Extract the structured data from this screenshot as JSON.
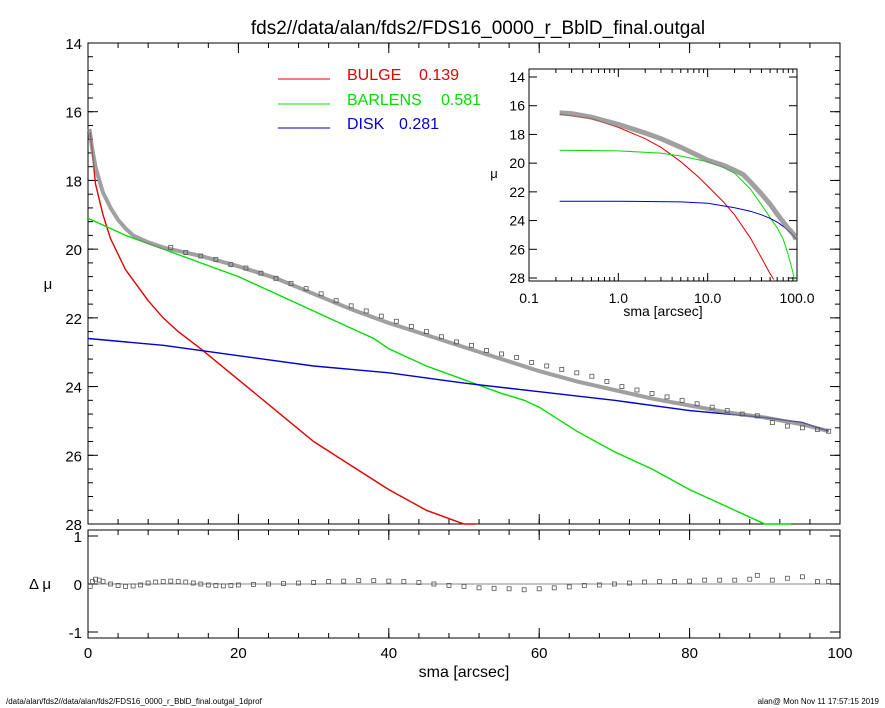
{
  "title": "fds2//data/alan/fds2/FDS16_0000_r_BblD_final.outgal",
  "footer": {
    "left": "/data/alan/fds2//data/alan/fds2/FDS16_0000_r_BblD_final.outgal_1dprof",
    "right": "alan@  Mon Nov 11 17:57:15 2019"
  },
  "colors": {
    "bulge": "#e00000",
    "barlens": "#00dd00",
    "disk": "#0000cc",
    "model": "#808080",
    "data": "#606060"
  },
  "chart_data": [
    {
      "id": "main",
      "type": "line",
      "xlabel": "",
      "ylabel": "μ",
      "xlim": [
        0,
        100
      ],
      "ylim": [
        28,
        14
      ],
      "y_inverted": true,
      "yticks": [
        14,
        16,
        18,
        20,
        22,
        24,
        26,
        28
      ],
      "ytick_labels": [
        "14",
        "16",
        "18",
        "20",
        "22",
        "24",
        "26",
        "28"
      ],
      "legend": [
        {
          "name": "BULGE",
          "value": "0.139",
          "color": "#e00000"
        },
        {
          "name": "BARLENS",
          "value": "0.581",
          "color": "#00dd00"
        },
        {
          "name": "DISK",
          "value": "0.281",
          "color": "#0000cc"
        }
      ],
      "series": [
        {
          "name": "BULGE",
          "color": "#e00000",
          "x": [
            0.3,
            1,
            2,
            3,
            5,
            8,
            10,
            12,
            15,
            20,
            25,
            30,
            35,
            40,
            45,
            50,
            51.5
          ],
          "y": [
            16.6,
            18.1,
            19.0,
            19.7,
            20.6,
            21.5,
            22.0,
            22.4,
            22.9,
            23.8,
            24.7,
            25.6,
            26.3,
            27.0,
            27.6,
            28.0,
            28.1
          ]
        },
        {
          "name": "BARLENS",
          "color": "#00dd00",
          "x": [
            0,
            5,
            10,
            15,
            20,
            25,
            30,
            35,
            38,
            40,
            45,
            50,
            55,
            58,
            60,
            65,
            70,
            75,
            80,
            85,
            90,
            93.5
          ],
          "y": [
            19.1,
            19.6,
            20.0,
            20.4,
            20.8,
            21.3,
            21.8,
            22.3,
            22.6,
            22.9,
            23.4,
            23.8,
            24.2,
            24.4,
            24.6,
            25.3,
            25.9,
            26.4,
            27.0,
            27.5,
            28.0,
            28.1
          ]
        },
        {
          "name": "DISK",
          "color": "#0000cc",
          "x": [
            0,
            10,
            20,
            30,
            40,
            50,
            60,
            70,
            80,
            85,
            90,
            95,
            98.5
          ],
          "y": [
            22.6,
            22.8,
            23.1,
            23.4,
            23.6,
            23.9,
            24.15,
            24.4,
            24.7,
            24.8,
            24.9,
            25.05,
            25.3
          ]
        },
        {
          "name": "",
          "color": "#808080",
          "x": [
            0.2,
            0.5,
            1,
            1.5,
            2,
            3,
            4,
            5,
            6,
            8,
            10,
            12,
            15,
            20,
            25,
            30,
            35,
            40,
            45,
            50,
            55,
            60,
            65,
            70,
            75,
            80,
            85,
            90,
            95,
            98.5
          ],
          "y": [
            16.5,
            17.0,
            17.6,
            18.0,
            18.35,
            18.8,
            19.15,
            19.4,
            19.6,
            19.8,
            19.95,
            20.05,
            20.2,
            20.5,
            20.85,
            21.3,
            21.75,
            22.15,
            22.5,
            22.85,
            23.2,
            23.55,
            23.85,
            24.1,
            24.35,
            24.55,
            24.75,
            24.9,
            25.1,
            25.3
          ]
        }
      ],
      "data_points": {
        "x": [
          11,
          13,
          15,
          17,
          19,
          21,
          23,
          25,
          27,
          29,
          31,
          33,
          35,
          37,
          39,
          41,
          43,
          45,
          47,
          49,
          51,
          53,
          55,
          57,
          59,
          61,
          63,
          65,
          67,
          69,
          71,
          73,
          75,
          77,
          79,
          81,
          83,
          85,
          87,
          89,
          91,
          93,
          95,
          97,
          98.5
        ],
        "y": [
          19.95,
          20.1,
          20.2,
          20.3,
          20.45,
          20.55,
          20.7,
          20.85,
          21.0,
          21.15,
          21.3,
          21.5,
          21.65,
          21.8,
          21.95,
          22.1,
          22.25,
          22.4,
          22.55,
          22.7,
          22.8,
          22.95,
          23.05,
          23.15,
          23.3,
          23.4,
          23.5,
          23.6,
          23.7,
          23.85,
          24.0,
          24.1,
          24.2,
          24.3,
          24.4,
          24.5,
          24.6,
          24.7,
          24.8,
          24.85,
          25.05,
          25.15,
          25.2,
          25.25,
          25.3
        ]
      }
    },
    {
      "id": "residual",
      "type": "scatter",
      "xlabel": "sma [arcsec]",
      "ylabel": "Δ μ",
      "xlim": [
        0,
        100
      ],
      "ylim": [
        -1,
        1
      ],
      "xticks": [
        0,
        20,
        40,
        60,
        80,
        100
      ],
      "xtick_labels": [
        "0",
        "20",
        "40",
        "60",
        "80",
        "100"
      ],
      "yticks": [
        -1,
        0,
        1
      ],
      "ytick_labels": [
        "-1",
        "0",
        "1"
      ],
      "x": [
        0.3,
        0.6,
        1,
        1.5,
        2,
        3,
        4,
        5,
        6,
        7,
        8,
        9,
        10,
        11,
        12,
        13,
        14,
        15,
        16,
        17,
        18,
        19,
        20,
        22,
        24,
        26,
        28,
        30,
        32,
        34,
        36,
        38,
        40,
        42,
        44,
        46,
        48,
        50,
        52,
        54,
        56,
        58,
        60,
        62,
        64,
        66,
        68,
        70,
        72,
        74,
        76,
        78,
        80,
        82,
        84,
        86,
        88,
        89,
        91,
        93,
        95,
        97,
        98.5
      ],
      "y": [
        -0.05,
        0.05,
        0.1,
        0.08,
        0.05,
        0.0,
        -0.03,
        -0.05,
        -0.04,
        -0.02,
        0.02,
        0.04,
        0.05,
        0.06,
        0.05,
        0.04,
        0.02,
        0.0,
        -0.02,
        -0.03,
        -0.04,
        -0.03,
        -0.02,
        -0.01,
        0.0,
        0.01,
        0.02,
        0.03,
        0.05,
        0.06,
        0.07,
        0.07,
        0.06,
        0.05,
        0.03,
        0.0,
        -0.03,
        -0.05,
        -0.08,
        -0.09,
        -0.1,
        -0.12,
        -0.1,
        -0.08,
        -0.06,
        -0.03,
        -0.02,
        0.0,
        0.02,
        0.04,
        0.05,
        0.05,
        0.06,
        0.08,
        0.08,
        0.08,
        0.1,
        0.18,
        0.08,
        0.12,
        0.15,
        0.05,
        0.05
      ]
    },
    {
      "id": "inset",
      "type": "line",
      "xlabel": "sma [arcsec]",
      "ylabel": "μ",
      "xscale": "log",
      "xlim": [
        0.1,
        100
      ],
      "ylim": [
        28,
        14
      ],
      "y_inverted": true,
      "xticks": [
        0.1,
        1,
        10,
        100
      ],
      "xtick_labels": [
        "0.1",
        "1.0",
        "10.0",
        "100.0"
      ],
      "yticks": [
        14,
        16,
        18,
        20,
        22,
        24,
        26,
        28
      ],
      "ytick_labels": [
        "14",
        "16",
        "18",
        "20",
        "22",
        "24",
        "26",
        "28"
      ],
      "series": [
        {
          "name": "BULGE",
          "color": "#e00000",
          "x": [
            0.22,
            0.5,
            1,
            2,
            3,
            5,
            8,
            10,
            15,
            20,
            30,
            40,
            50,
            55
          ],
          "y": [
            16.6,
            16.9,
            17.5,
            18.3,
            18.9,
            19.9,
            21.0,
            21.6,
            22.7,
            23.6,
            25.2,
            26.6,
            27.7,
            28.1
          ]
        },
        {
          "name": "BARLENS",
          "color": "#00dd00",
          "x": [
            0.22,
            1,
            3,
            5,
            10,
            15,
            20,
            30,
            40,
            50,
            60,
            70,
            80,
            90,
            93
          ],
          "y": [
            19.1,
            19.15,
            19.3,
            19.5,
            19.9,
            20.3,
            20.7,
            21.8,
            22.9,
            23.8,
            24.5,
            25.3,
            26.4,
            27.6,
            28.1
          ]
        },
        {
          "name": "DISK",
          "color": "#0000cc",
          "x": [
            0.22,
            1,
            5,
            10,
            20,
            30,
            40,
            50,
            60,
            70,
            80,
            90,
            98
          ],
          "y": [
            22.65,
            22.65,
            22.7,
            22.8,
            23.1,
            23.35,
            23.6,
            23.85,
            24.1,
            24.4,
            24.7,
            25.0,
            25.3
          ]
        },
        {
          "name": "",
          "color": "#808080",
          "x": [
            0.22,
            0.3,
            0.5,
            1,
            2,
            3,
            5,
            8,
            10,
            15,
            20,
            25,
            30,
            40,
            50,
            60,
            70,
            80,
            90,
            98
          ],
          "y": [
            16.5,
            16.55,
            16.8,
            17.3,
            17.9,
            18.3,
            18.9,
            19.5,
            19.8,
            20.15,
            20.5,
            20.8,
            21.3,
            22.15,
            22.85,
            23.55,
            24.1,
            24.55,
            24.9,
            25.3
          ]
        }
      ]
    }
  ]
}
